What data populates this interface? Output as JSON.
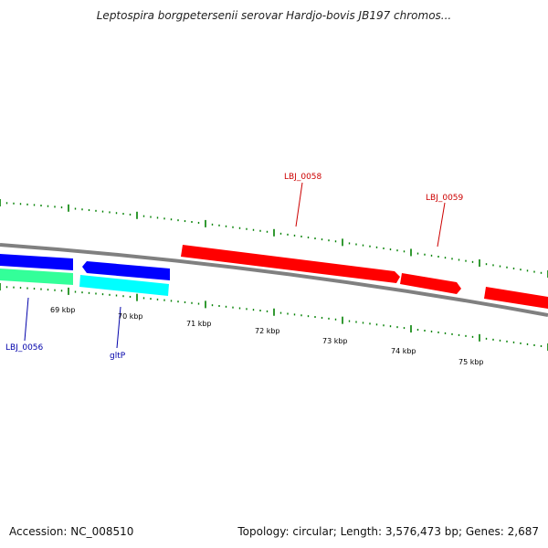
{
  "title": "Leptospira borgpetersenii serovar Hardjo-bovis JB197 chromos...",
  "footer": {
    "accession": "Accession: NC_008510",
    "summary": "Topology: circular; Length: 3,576,473 bp; Genes: 2,687"
  },
  "colors": {
    "backbone": "#808080",
    "forward_gene": "#ff0000",
    "reverse_gene": "#0000ff",
    "cyan_gene": "#00ffff",
    "green_gene": "#33ff99",
    "tick": "#008000",
    "forward_label": "#cc0000",
    "reverse_label": "#0000aa"
  },
  "scale_labels": [
    "69 kbp",
    "70 kbp",
    "71 kbp",
    "72 kbp",
    "73 kbp",
    "74 kbp",
    "75 kbp"
  ],
  "gene_labels": [
    "LBJ_0058",
    "LBJ_0059",
    "LBJ_0056",
    "gltP"
  ]
}
